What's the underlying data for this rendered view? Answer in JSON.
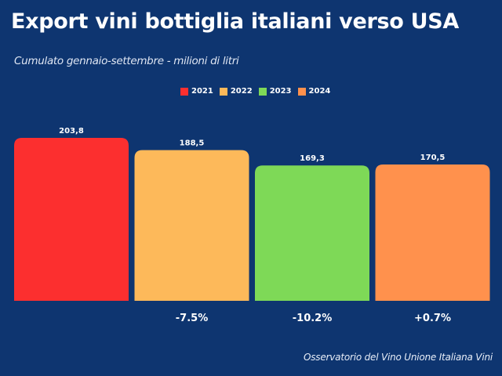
{
  "chart_data": {
    "type": "bar",
    "title": "Export vini bottiglia italiani verso USA",
    "subtitle": "Cumulato gennaio-settembre - milioni di litri",
    "categories": [
      "2021",
      "2022",
      "2023",
      "2024"
    ],
    "values": [
      203.8,
      188.5,
      169.3,
      170.5
    ],
    "value_labels": [
      "203,8",
      "188,5",
      "169,3",
      "170,5"
    ],
    "change_labels": [
      "",
      "-7.5%",
      "-10.2%",
      "+0.7%"
    ],
    "colors": [
      "#fc2f2f",
      "#fdb95a",
      "#7ed957",
      "#ff914d"
    ],
    "legend": {
      "entries": [
        "2021",
        "2022",
        "2023",
        "2024"
      ],
      "position": "top-center"
    },
    "xlabel": "",
    "ylabel": "",
    "ylim": [
      0,
      203.8
    ],
    "grid": false,
    "source": "Osservatorio del Vino Unione Italiana Vini"
  }
}
